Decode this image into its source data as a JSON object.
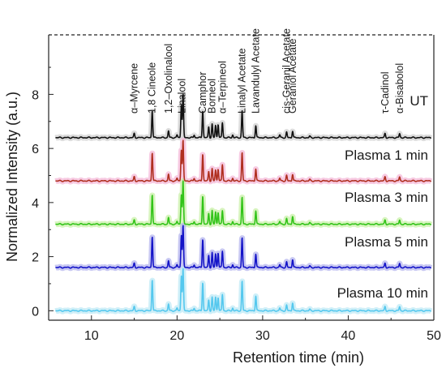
{
  "chart_data": {
    "type": "line",
    "title": "",
    "xlabel": "Retention time (min)",
    "ylabel": "Normalized Intensity (a.u.)",
    "xlim": [
      5,
      50
    ],
    "ylim": [
      -0.35,
      10.2
    ],
    "xticks": [
      10,
      20,
      30,
      40,
      50
    ],
    "xtick_labels": [
      "10",
      "20",
      "30",
      "40",
      "50"
    ],
    "yticks": [
      0,
      2,
      4,
      6,
      8
    ],
    "ytick_labels": [
      "0",
      "2",
      "4",
      "6",
      "8"
    ],
    "grid": false,
    "top_border_style": "dashed",
    "series": [
      {
        "name": "UT",
        "color": "#111111",
        "band_color": "#d0d0d0",
        "baseline": 6.4,
        "peaks": [
          [
            15.0,
            0.15
          ],
          [
            17.1,
            1.0
          ],
          [
            19.0,
            0.25
          ],
          [
            20.0,
            0.1
          ],
          [
            20.5,
            1.2
          ],
          [
            20.7,
            1.6
          ],
          [
            22.0,
            0.1
          ],
          [
            23.0,
            1.0
          ],
          [
            23.7,
            0.4
          ],
          [
            24.1,
            0.5
          ],
          [
            24.5,
            0.45
          ],
          [
            24.8,
            0.5
          ],
          [
            25.3,
            0.55
          ],
          [
            26.5,
            0.1
          ],
          [
            27.6,
            1.0
          ],
          [
            29.2,
            0.45
          ],
          [
            32.0,
            0.1
          ],
          [
            32.8,
            0.2
          ],
          [
            33.5,
            0.25
          ],
          [
            35.5,
            0.05
          ],
          [
            44.3,
            0.15
          ],
          [
            46.0,
            0.15
          ]
        ]
      },
      {
        "name": "Plasma 1 min",
        "color": "#b03020",
        "band_color": "#f4b8d8",
        "baseline": 4.8,
        "peaks": [
          [
            15.0,
            0.15
          ],
          [
            17.1,
            1.05
          ],
          [
            19.0,
            0.25
          ],
          [
            20.0,
            0.1
          ],
          [
            20.5,
            1.15
          ],
          [
            20.7,
            1.5
          ],
          [
            22.0,
            0.1
          ],
          [
            23.0,
            1.0
          ],
          [
            23.7,
            0.35
          ],
          [
            24.1,
            0.45
          ],
          [
            24.5,
            0.4
          ],
          [
            24.8,
            0.45
          ],
          [
            25.3,
            0.6
          ],
          [
            26.5,
            0.1
          ],
          [
            27.6,
            1.05
          ],
          [
            29.2,
            0.45
          ],
          [
            32.0,
            0.1
          ],
          [
            32.8,
            0.2
          ],
          [
            33.5,
            0.25
          ],
          [
            35.5,
            0.05
          ],
          [
            44.3,
            0.15
          ],
          [
            46.0,
            0.15
          ]
        ]
      },
      {
        "name": "Plasma 3 min",
        "color": "#33c41a",
        "band_color": "#c9f0a8",
        "baseline": 3.2,
        "peaks": [
          [
            15.0,
            0.15
          ],
          [
            17.1,
            1.1
          ],
          [
            19.0,
            0.25
          ],
          [
            20.0,
            0.1
          ],
          [
            20.5,
            1.1
          ],
          [
            20.7,
            1.6
          ],
          [
            22.0,
            0.1
          ],
          [
            23.0,
            1.05
          ],
          [
            23.7,
            0.4
          ],
          [
            24.1,
            0.5
          ],
          [
            24.5,
            0.45
          ],
          [
            24.8,
            0.45
          ],
          [
            25.3,
            0.5
          ],
          [
            26.5,
            0.1
          ],
          [
            27.6,
            1.0
          ],
          [
            29.2,
            0.5
          ],
          [
            32.0,
            0.1
          ],
          [
            32.8,
            0.2
          ],
          [
            33.5,
            0.3
          ],
          [
            35.5,
            0.05
          ],
          [
            44.3,
            0.15
          ],
          [
            46.0,
            0.15
          ]
        ]
      },
      {
        "name": "Plasma 5 min",
        "color": "#1414c8",
        "band_color": "#b4b4ee",
        "baseline": 1.6,
        "peaks": [
          [
            15.0,
            0.15
          ],
          [
            17.1,
            1.15
          ],
          [
            19.0,
            0.25
          ],
          [
            20.0,
            0.1
          ],
          [
            20.5,
            1.2
          ],
          [
            20.7,
            1.55
          ],
          [
            22.0,
            0.1
          ],
          [
            23.0,
            1.05
          ],
          [
            23.7,
            0.45
          ],
          [
            24.1,
            0.55
          ],
          [
            24.5,
            0.5
          ],
          [
            24.8,
            0.55
          ],
          [
            25.3,
            0.6
          ],
          [
            26.5,
            0.1
          ],
          [
            27.6,
            1.1
          ],
          [
            29.2,
            0.5
          ],
          [
            32.0,
            0.1
          ],
          [
            32.8,
            0.2
          ],
          [
            33.5,
            0.3
          ],
          [
            35.5,
            0.05
          ],
          [
            44.3,
            0.15
          ],
          [
            46.0,
            0.15
          ]
        ]
      },
      {
        "name": "Plasma 10 min",
        "color": "#55c8ee",
        "band_color": "#bfeaf6",
        "baseline": 0.0,
        "peaks": [
          [
            15.0,
            0.15
          ],
          [
            17.1,
            1.15
          ],
          [
            19.0,
            0.25
          ],
          [
            20.0,
            0.1
          ],
          [
            20.5,
            1.3
          ],
          [
            20.7,
            1.55
          ],
          [
            22.0,
            0.1
          ],
          [
            23.0,
            1.05
          ],
          [
            23.7,
            0.4
          ],
          [
            24.1,
            0.5
          ],
          [
            24.5,
            0.5
          ],
          [
            24.8,
            0.5
          ],
          [
            25.3,
            0.6
          ],
          [
            26.5,
            0.1
          ],
          [
            27.6,
            1.1
          ],
          [
            29.2,
            0.55
          ],
          [
            32.0,
            0.1
          ],
          [
            32.8,
            0.2
          ],
          [
            33.5,
            0.3
          ],
          [
            35.5,
            0.05
          ],
          [
            44.3,
            0.15
          ],
          [
            46.0,
            0.15
          ]
        ]
      }
    ],
    "annotations": [
      {
        "text": "α–Myrcene",
        "x": 15.0
      },
      {
        "text": "1,8 Cineole",
        "x": 17.1
      },
      {
        "text": "1,2–Oxolinalool",
        "x": 19.0
      },
      {
        "text": "Linalool",
        "x": 20.6
      },
      {
        "text": "Camphor",
        "x": 23.0
      },
      {
        "text": "Borneol",
        "x": 24.1
      },
      {
        "text": "α–Terpineol",
        "x": 25.3
      },
      {
        "text": "Linalyl Acetate",
        "x": 27.6
      },
      {
        "text": "Lavandulyl Acetate",
        "x": 29.2
      },
      {
        "text": "cis-Geranil Acetate",
        "x": 32.8
      },
      {
        "text": "Geraniol Acetate",
        "x": 33.5
      },
      {
        "text": "τ-Cadinol",
        "x": 44.3
      },
      {
        "text": "α-Bisabolol",
        "x": 46.0
      }
    ]
  }
}
